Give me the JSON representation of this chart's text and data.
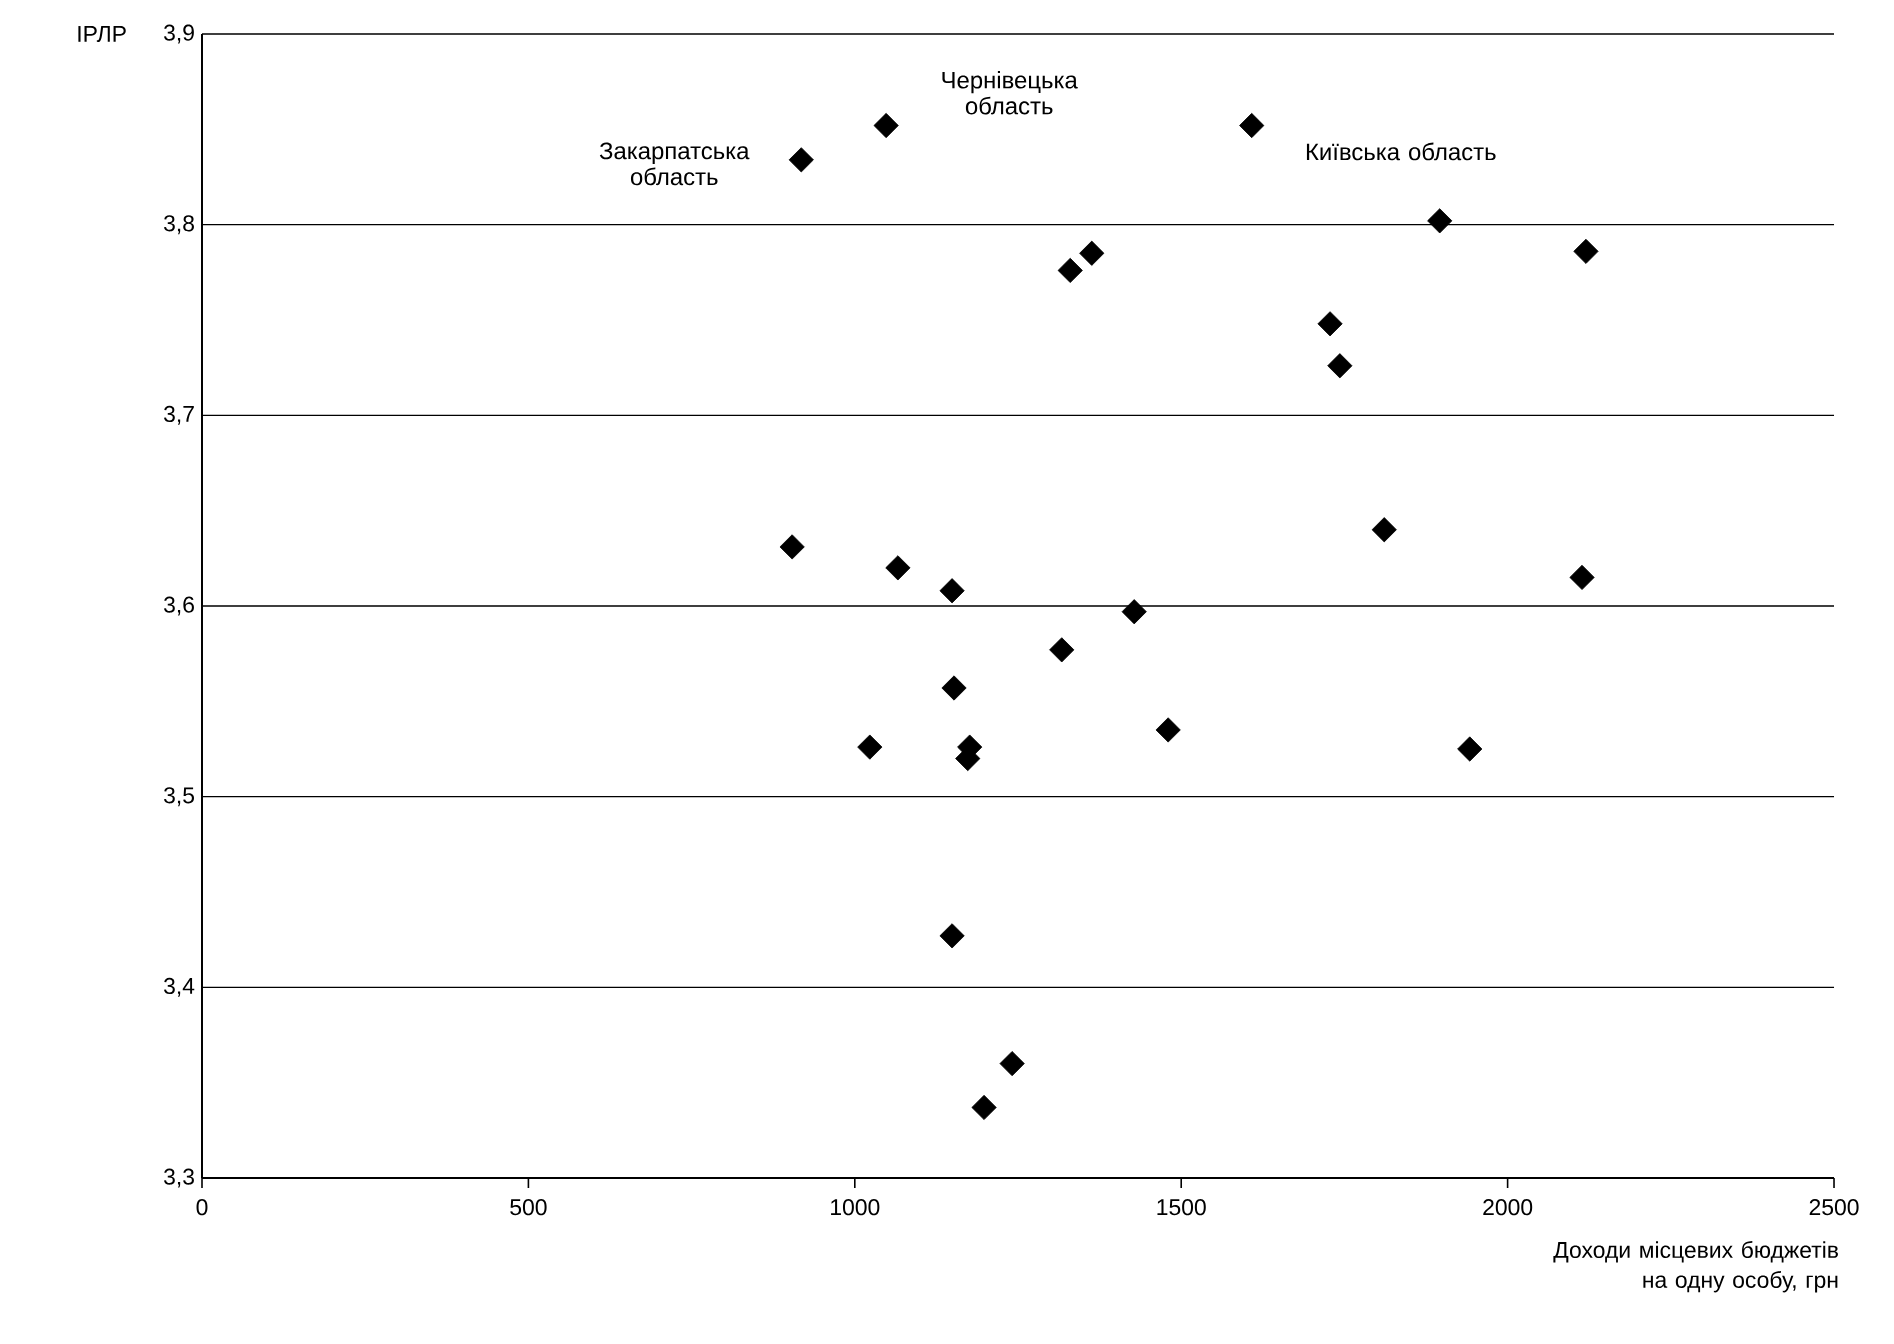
{
  "chart_data": {
    "type": "scatter",
    "ylabel": "ІРЛР",
    "xlabel": "Доходи місцевих бюджетів на одну особу, грн",
    "x": [
      918,
      1048,
      1608,
      1896,
      1330,
      1363,
      1728,
      1743,
      2120,
      904,
      1066,
      1149,
      1428,
      1811,
      2114,
      1317,
      1152,
      1023,
      1176,
      1173,
      1480,
      1942,
      1149,
      1241,
      1198
    ],
    "values": [
      3.834,
      3.852,
      3.852,
      3.802,
      3.776,
      3.785,
      3.748,
      3.726,
      3.786,
      3.631,
      3.62,
      3.608,
      3.597,
      3.64,
      3.615,
      3.577,
      3.557,
      3.526,
      3.526,
      3.52,
      3.535,
      3.525,
      3.427,
      3.36,
      3.337
    ],
    "color": "#000000",
    "marker": "diamond",
    "grid": "y",
    "xlim": [
      0,
      2500
    ],
    "xticks": [
      0,
      500,
      1000,
      1500,
      2000,
      2500
    ],
    "ylim": [
      3.3,
      3.9
    ],
    "yticks": [
      {
        "value": 3.3,
        "label": "3,3"
      },
      {
        "value": 3.4,
        "label": "3,4"
      },
      {
        "value": 3.5,
        "label": "3,5"
      },
      {
        "value": 3.6,
        "label": "3,6"
      },
      {
        "value": 3.7,
        "label": "3,7"
      },
      {
        "value": 3.8,
        "label": "3,8"
      },
      {
        "value": 3.9,
        "label": "3,9"
      }
    ],
    "annotations": [
      {
        "text": "Закарпатська область",
        "x": 918,
        "y": 3.834
      },
      {
        "text": "Чернівецька область",
        "x": 1048,
        "y": 3.852
      },
      {
        "text": "Київська область",
        "x": 1608,
        "y": 3.852
      }
    ]
  }
}
